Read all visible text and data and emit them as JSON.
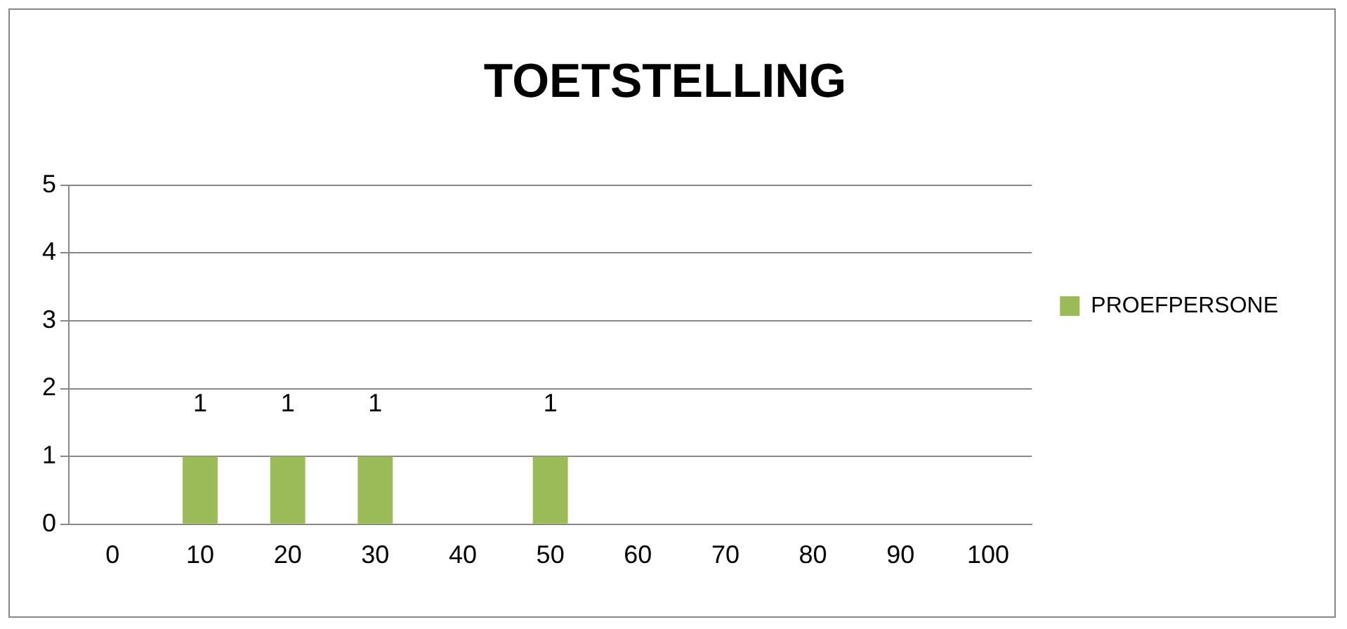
{
  "chart_data": {
    "type": "bar",
    "title": "TOETSTELLING",
    "categories": [
      "0",
      "10",
      "20",
      "30",
      "40",
      "50",
      "60",
      "70",
      "80",
      "90",
      "100"
    ],
    "series": [
      {
        "name": "PROEFPERSONE",
        "color": "#9bbb59",
        "values": [
          null,
          1,
          1,
          1,
          null,
          1,
          null,
          null,
          null,
          null,
          null
        ]
      }
    ],
    "ylim": [
      0,
      5
    ],
    "yticks": [
      0,
      1,
      2,
      3,
      4,
      5
    ],
    "grid": "y",
    "legend": "right",
    "data_labels": true
  }
}
